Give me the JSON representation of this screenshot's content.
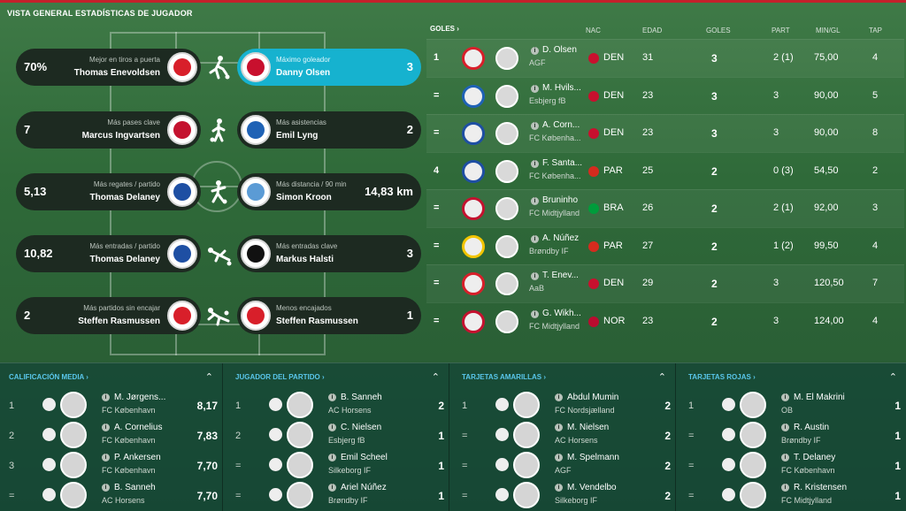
{
  "header": {
    "title": "VISTA GENERAL ESTADÍSTICAS DE JUGADOR"
  },
  "accent": "#16b2cf",
  "stats": [
    {
      "left": {
        "value": "70%",
        "label": "Mejor en tiros a puerta",
        "name": "Thomas Enevoldsen"
      },
      "icon": "shooting-player-icon",
      "right": {
        "value": "3",
        "label": "Máximo goleador",
        "name": "Danny Olsen"
      }
    },
    {
      "left": {
        "value": "7",
        "label": "Más pases clave",
        "name": "Marcus Ingvartsen"
      },
      "icon": "passing-player-icon",
      "right": {
        "value": "2",
        "label": "Más asistencias",
        "name": "Emil Lyng"
      }
    },
    {
      "left": {
        "value": "5,13",
        "label": "Más regates / partido",
        "name": "Thomas Delaney"
      },
      "icon": "dribbling-player-icon",
      "right": {
        "value": "14,83 km",
        "label": "Más distancia / 90 min",
        "name": "Simon Kroon"
      }
    },
    {
      "left": {
        "value": "10,82",
        "label": "Más entradas / partido",
        "name": "Thomas Delaney"
      },
      "icon": "tackle-player-icon",
      "right": {
        "value": "3",
        "label": "Más entradas clave",
        "name": "Markus Halsti"
      }
    },
    {
      "left": {
        "value": "2",
        "label": "Más partidos sin encajar",
        "name": "Steffen Rasmussen"
      },
      "icon": "goalkeeper-dive-icon",
      "right": {
        "value": "1",
        "label": "Menos encajados",
        "name": "Steffen Rasmussen"
      }
    }
  ],
  "goals": {
    "title": "GOLES",
    "columns": {
      "nac": "NAC",
      "edad": "EDAD",
      "goles": "GOLES",
      "part": "PART",
      "min": "MIN/GL",
      "tap": "TAP"
    },
    "rows": [
      {
        "pos": "1",
        "name": "D. Olsen",
        "club": "AGF",
        "nat": "DEN",
        "age": "31",
        "goals": "3",
        "part": "2 (1)",
        "min": "75,00",
        "tap": "4",
        "flag": "#c8102e",
        "crest": "#d81f2a"
      },
      {
        "pos": "=",
        "name": "M. Hvils...",
        "club": "Esbjerg fB",
        "nat": "DEN",
        "age": "23",
        "goals": "3",
        "part": "3",
        "min": "90,00",
        "tap": "5",
        "flag": "#c8102e",
        "crest": "#1f62b5"
      },
      {
        "pos": "=",
        "name": "A. Corn...",
        "club": "FC Københa...",
        "nat": "DEN",
        "age": "23",
        "goals": "3",
        "part": "3",
        "min": "90,00",
        "tap": "8",
        "flag": "#c8102e",
        "crest": "#1e4fa3"
      },
      {
        "pos": "4",
        "name": "F. Santa...",
        "club": "FC Københa...",
        "nat": "PAR",
        "age": "25",
        "goals": "2",
        "part": "0 (3)",
        "min": "54,50",
        "tap": "2",
        "flag": "#d52b1e",
        "crest": "#1e4fa3"
      },
      {
        "pos": "=",
        "name": "Bruninho",
        "club": "FC Midtjylland",
        "nat": "BRA",
        "age": "26",
        "goals": "2",
        "part": "2 (1)",
        "min": "92,00",
        "tap": "3",
        "flag": "#009c3b",
        "crest": "#c4122f"
      },
      {
        "pos": "=",
        "name": "A. Núñez",
        "club": "Brøndby IF",
        "nat": "PAR",
        "age": "27",
        "goals": "2",
        "part": "1 (2)",
        "min": "99,50",
        "tap": "4",
        "flag": "#d52b1e",
        "crest": "#f2c500"
      },
      {
        "pos": "=",
        "name": "T. Enev...",
        "club": "AaB",
        "nat": "DEN",
        "age": "29",
        "goals": "2",
        "part": "3",
        "min": "120,50",
        "tap": "7",
        "flag": "#c8102e",
        "crest": "#d81f2a"
      },
      {
        "pos": "=",
        "name": "G. Wikh...",
        "club": "FC Midtjylland",
        "nat": "NOR",
        "age": "23",
        "goals": "2",
        "part": "3",
        "min": "124,00",
        "tap": "4",
        "flag": "#ba0c2f",
        "crest": "#c4122f"
      }
    ]
  },
  "panels": [
    {
      "title": "CALIFICACIÓN MEDIA",
      "rows": [
        {
          "rank": "1",
          "name": "M. Jørgens...",
          "club": "FC København",
          "value": "8,17"
        },
        {
          "rank": "2",
          "name": "A. Cornelius",
          "club": "FC København",
          "value": "7,83"
        },
        {
          "rank": "3",
          "name": "P. Ankersen",
          "club": "FC København",
          "value": "7,70"
        },
        {
          "rank": "=",
          "name": "B. Sanneh",
          "club": "AC Horsens",
          "value": "7,70"
        }
      ]
    },
    {
      "title": "JUGADOR DEL PARTIDO",
      "rows": [
        {
          "rank": "1",
          "name": "B. Sanneh",
          "club": "AC Horsens",
          "value": "2"
        },
        {
          "rank": "2",
          "name": "C. Nielsen",
          "club": "Esbjerg fB",
          "value": "1"
        },
        {
          "rank": "=",
          "name": "Emil Scheel",
          "club": "Silkeborg IF",
          "value": "1"
        },
        {
          "rank": "=",
          "name": "Ariel Núñez",
          "club": "Brøndby IF",
          "value": "1"
        }
      ]
    },
    {
      "title": "TARJETAS AMARILLAS",
      "rows": [
        {
          "rank": "1",
          "name": "Abdul Mumin",
          "club": "FC Nordsjælland",
          "value": "2"
        },
        {
          "rank": "=",
          "name": "M. Nielsen",
          "club": "AC Horsens",
          "value": "2"
        },
        {
          "rank": "=",
          "name": "M. Spelmann",
          "club": "AGF",
          "value": "2"
        },
        {
          "rank": "=",
          "name": "M. Vendelbo",
          "club": "Silkeborg IF",
          "value": "2"
        }
      ]
    },
    {
      "title": "TARJETAS ROJAS",
      "rows": [
        {
          "rank": "1",
          "name": "M. El Makrini",
          "club": "OB",
          "value": "1"
        },
        {
          "rank": "=",
          "name": "R. Austin",
          "club": "Brøndby IF",
          "value": "1"
        },
        {
          "rank": "=",
          "name": "T. Delaney",
          "club": "FC København",
          "value": "1"
        },
        {
          "rank": "=",
          "name": "R. Kristensen",
          "club": "FC Midtjylland",
          "value": "1"
        }
      ]
    }
  ]
}
